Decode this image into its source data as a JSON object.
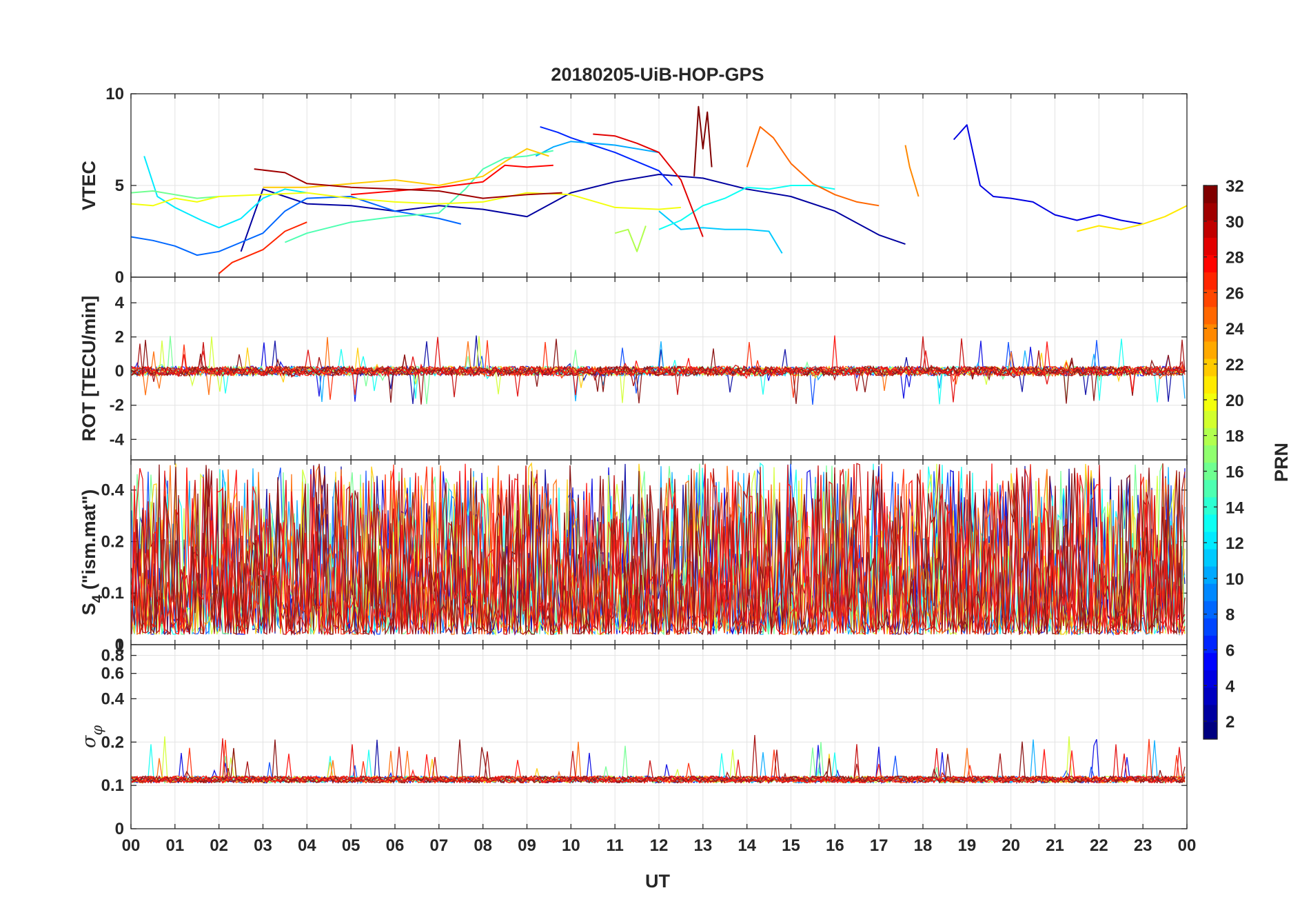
{
  "chart_data": {
    "type": "line",
    "title": "20180205-UiB-HOP-GPS",
    "x": {
      "label": "UT",
      "range": [
        0,
        24
      ],
      "tick_values": [
        0,
        1,
        2,
        3,
        4,
        5,
        6,
        7,
        8,
        9,
        10,
        11,
        12,
        13,
        14,
        15,
        16,
        17,
        18,
        19,
        20,
        21,
        22,
        23,
        24
      ],
      "tick_labels": [
        "00",
        "01",
        "02",
        "03",
        "04",
        "05",
        "06",
        "07",
        "08",
        "09",
        "10",
        "11",
        "12",
        "13",
        "14",
        "15",
        "16",
        "17",
        "18",
        "19",
        "20",
        "21",
        "22",
        "23",
        "00"
      ]
    },
    "colorbar": {
      "label": "PRN",
      "range": [
        1,
        32
      ],
      "tick_values": [
        2,
        4,
        6,
        8,
        10,
        12,
        14,
        16,
        18,
        20,
        22,
        24,
        26,
        28,
        30,
        32
      ],
      "tick_labels": [
        "2",
        "4",
        "6",
        "8",
        "10",
        "12",
        "14",
        "16",
        "18",
        "20",
        "22",
        "24",
        "26",
        "28",
        "30",
        "32"
      ]
    },
    "panels": [
      {
        "name": "vtec",
        "ylabel": "VTEC",
        "ylim": [
          0,
          10
        ],
        "y_tick_values": [
          0,
          5,
          10
        ],
        "y_tick_labels": [
          "0",
          "5",
          "10"
        ],
        "series": [
          {
            "prn": 2,
            "x": [
              2.5,
              3.0,
              3.5,
              4.0,
              5.0,
              6.0,
              7.0,
              8.0,
              9.0,
              10.0,
              11.0,
              12.0,
              13.0,
              14.0,
              15.0,
              16.0,
              17.0,
              17.6
            ],
            "y": [
              1.4,
              4.8,
              4.4,
              4.0,
              3.9,
              3.6,
              3.9,
              3.7,
              3.3,
              4.6,
              5.2,
              5.6,
              5.4,
              4.8,
              4.4,
              3.6,
              2.3,
              1.8
            ]
          },
          {
            "prn": 4,
            "x": [
              18.7,
              19.0,
              19.3,
              19.6,
              20.0,
              20.5,
              21.0,
              21.5,
              22.0,
              22.5,
              23.0
            ],
            "y": [
              7.5,
              8.3,
              5.0,
              4.4,
              4.3,
              4.1,
              3.4,
              3.1,
              3.4,
              3.1,
              2.9
            ]
          },
          {
            "prn": 6,
            "x": [
              9.3,
              9.7,
              10.0,
              10.5,
              11.0,
              11.5,
              12.0,
              12.3
            ],
            "y": [
              8.2,
              7.9,
              7.6,
              7.2,
              6.8,
              6.3,
              5.8,
              5.0
            ]
          },
          {
            "prn": 8,
            "x": [
              0.0,
              0.5,
              1.0,
              1.5,
              2.0,
              2.5,
              3.0,
              3.5,
              4.0,
              5.0,
              6.0,
              7.0,
              7.5
            ],
            "y": [
              2.2,
              2.0,
              1.7,
              1.2,
              1.4,
              1.9,
              2.4,
              3.6,
              4.3,
              4.4,
              3.6,
              3.2,
              2.9
            ]
          },
          {
            "prn": 10,
            "x": [
              9.2,
              9.6,
              10.0,
              10.5,
              11.0,
              11.5,
              12.0
            ],
            "y": [
              6.6,
              7.1,
              7.4,
              7.3,
              7.2,
              7.0,
              6.8
            ]
          },
          {
            "prn": 11,
            "x": [
              12.0,
              12.5,
              13.0,
              13.5,
              14.0,
              14.5,
              14.8
            ],
            "y": [
              3.6,
              2.6,
              2.7,
              2.6,
              2.6,
              2.5,
              1.3
            ]
          },
          {
            "prn": 12,
            "x": [
              0.3,
              0.6,
              1.0,
              1.6,
              2.0,
              2.5,
              3.0,
              3.5,
              4.0
            ],
            "y": [
              6.6,
              4.4,
              3.8,
              3.1,
              2.7,
              3.2,
              4.3,
              4.8,
              4.6
            ]
          },
          {
            "prn": 13,
            "x": [
              12.0,
              12.5,
              13.0,
              13.5,
              14.0,
              14.5,
              15.0,
              15.5,
              16.0
            ],
            "y": [
              2.6,
              3.1,
              3.9,
              4.3,
              4.9,
              4.8,
              5.0,
              5.0,
              4.8
            ]
          },
          {
            "prn": 15,
            "x": [
              3.5,
              4.0,
              5.0,
              6.0,
              7.0,
              7.6,
              8.0,
              8.5,
              9.0,
              9.6
            ],
            "y": [
              1.9,
              2.4,
              3.0,
              3.3,
              3.5,
              4.8,
              5.9,
              6.5,
              6.6,
              6.9
            ]
          },
          {
            "prn": 16,
            "x": [
              0.0,
              0.5,
              1.0,
              1.5,
              2.0
            ],
            "y": [
              4.6,
              4.7,
              4.5,
              4.3,
              4.4
            ]
          },
          {
            "prn": 18,
            "x": [
              11.0,
              11.3,
              11.5,
              11.7
            ],
            "y": [
              2.4,
              2.6,
              1.4,
              2.8
            ]
          },
          {
            "prn": 20,
            "x": [
              0.0,
              0.5,
              1.0,
              1.5,
              2.0,
              3.0,
              4.0,
              5.0,
              6.0,
              7.0,
              8.0,
              9.0,
              10.0,
              11.0,
              12.0,
              12.5
            ],
            "y": [
              4.0,
              3.9,
              4.3,
              4.1,
              4.4,
              4.5,
              4.6,
              4.3,
              4.1,
              4.0,
              4.1,
              4.6,
              4.5,
              3.8,
              3.7,
              3.8
            ]
          },
          {
            "prn": 21,
            "x": [
              21.5,
              22.0,
              22.5,
              23.0,
              23.5,
              24.0
            ],
            "y": [
              2.5,
              2.8,
              2.6,
              2.9,
              3.3,
              3.9
            ]
          },
          {
            "prn": 22,
            "x": [
              3.0,
              4.0,
              5.0,
              6.0,
              7.0,
              8.0,
              8.5,
              9.0,
              9.5
            ],
            "y": [
              4.9,
              4.9,
              5.1,
              5.3,
              5.0,
              5.5,
              6.3,
              7.0,
              6.6
            ]
          },
          {
            "prn": 24,
            "x": [
              17.6,
              17.7,
              17.8,
              17.9
            ],
            "y": [
              7.2,
              6.0,
              5.2,
              4.4
            ]
          },
          {
            "prn": 25,
            "x": [
              14.0,
              14.3,
              14.6,
              15.0,
              15.5,
              16.0,
              16.5,
              17.0
            ],
            "y": [
              6.0,
              8.2,
              7.6,
              6.2,
              5.1,
              4.5,
              4.1,
              3.9
            ]
          },
          {
            "prn": 27,
            "x": [
              2.0,
              2.3,
              2.5,
              3.0,
              3.5,
              4.0
            ],
            "y": [
              0.2,
              0.8,
              1.0,
              1.5,
              2.5,
              3.0
            ]
          },
          {
            "prn": 28,
            "x": [
              5.0,
              6.0,
              7.0,
              8.0,
              8.5,
              9.0,
              9.6
            ],
            "y": [
              4.5,
              4.7,
              4.9,
              5.2,
              6.1,
              6.0,
              6.1
            ]
          },
          {
            "prn": 29,
            "x": [
              10.5,
              11.0,
              11.5,
              12.0,
              12.5,
              13.0
            ],
            "y": [
              7.8,
              7.7,
              7.3,
              6.8,
              5.3,
              2.2
            ]
          },
          {
            "prn": 31,
            "x": [
              2.8,
              3.5,
              4.0,
              5.0,
              6.0,
              7.0,
              8.0,
              9.0,
              9.8
            ],
            "y": [
              5.9,
              5.7,
              5.1,
              4.9,
              4.8,
              4.7,
              4.3,
              4.5,
              4.6
            ]
          },
          {
            "prn": 32,
            "x": [
              12.8,
              12.9,
              13.0,
              13.1,
              13.2
            ],
            "y": [
              5.5,
              9.3,
              7.0,
              9.0,
              6.0
            ]
          }
        ]
      },
      {
        "name": "rot",
        "ylabel": "ROT [TECU/min]",
        "ylim": [
          -5.2,
          5.5
        ],
        "y_tick_values": [
          -4,
          -2,
          0,
          2,
          4
        ],
        "y_tick_labels": [
          "-4",
          "-2",
          "0",
          "2",
          "4"
        ],
        "series": []
      },
      {
        "name": "s4",
        "ylabel": "S4 (\"ism.mat\")",
        "ylabel_main": "S",
        "ylabel_sub": "4",
        "ylabel_rest": " (\"ism.mat\")",
        "scale": "log",
        "ylim": [
          0.05,
          0.6
        ],
        "y_tick_values": [
          0.05,
          0.1,
          0.2,
          0.4
        ],
        "y_tick_labels": [
          "0",
          "0.1",
          "0.2",
          "0.4"
        ],
        "series": []
      },
      {
        "name": "sigma_phi",
        "ylabel": "σφ",
        "ylabel_main": "σ",
        "ylabel_sub": "φ",
        "scale": "log",
        "ylim": [
          0.05,
          0.95
        ],
        "y_tick_values": [
          0.05,
          0.1,
          0.2,
          0.4,
          0.6,
          0.8
        ],
        "y_tick_labels": [
          "0",
          "0.1",
          "0.2",
          "0.4",
          "0.6",
          "0.8"
        ],
        "top_tick_label": "1",
        "series": []
      }
    ]
  }
}
